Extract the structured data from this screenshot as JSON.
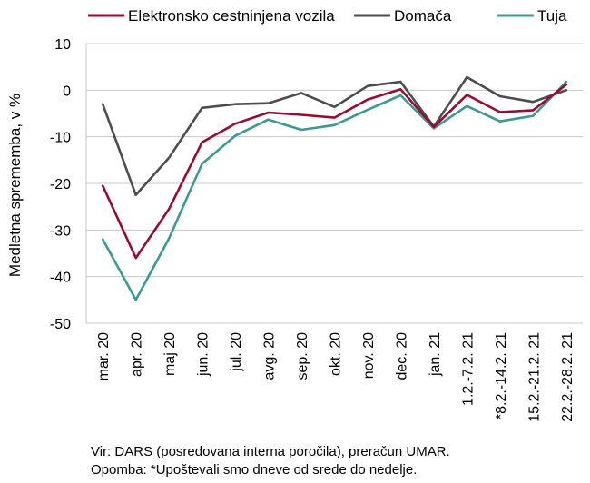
{
  "chart_data": {
    "type": "line",
    "ylabel": "Medletna sprememba, v %",
    "ylim": [
      -50,
      10
    ],
    "yticks": [
      10,
      0,
      -10,
      -20,
      -30,
      -40,
      -50
    ],
    "categories": [
      "mar. 20",
      "apr. 20",
      "maj 20",
      "jun. 20",
      "jul. 20",
      "avg. 20",
      "sep. 20",
      "okt. 20",
      "nov. 20",
      "dec. 20",
      "jan. 21",
      "1.2.-7.2. 21",
      "*8.2.-14.2. 21",
      "15.2.-21.2. 21",
      "22.2.-28.2. 21"
    ],
    "series": [
      {
        "name": "Elektronsko cestninjena vozila",
        "color": "#9c0a2f",
        "values": [
          -20.5,
          -36.0,
          -25.5,
          -11.2,
          -7.2,
          -4.8,
          -5.3,
          -5.9,
          -2.0,
          0.2,
          -7.9,
          -1.0,
          -4.7,
          -4.3,
          1.2
        ]
      },
      {
        "name": "Domača",
        "color": "#4d4d4d",
        "values": [
          -3.0,
          -22.5,
          -14.5,
          -3.8,
          -3.0,
          -2.8,
          -0.6,
          -3.6,
          0.9,
          1.8,
          -7.8,
          2.8,
          -1.3,
          -2.5,
          0.0
        ]
      },
      {
        "name": "Tuja",
        "color": "#3a9a9a",
        "values": [
          -32.0,
          -45.0,
          -31.8,
          -15.8,
          -9.8,
          -6.3,
          -8.5,
          -7.5,
          -4.2,
          -1.1,
          -8.2,
          -3.4,
          -6.7,
          -5.5,
          1.8
        ]
      }
    ],
    "grid": true,
    "legend": "top"
  },
  "notes": {
    "source": "Vir: DARS (posredovana interna poročila), preračun UMAR.",
    "remark": "Opomba: *Upoštevali smo dneve od srede do nedelje."
  }
}
